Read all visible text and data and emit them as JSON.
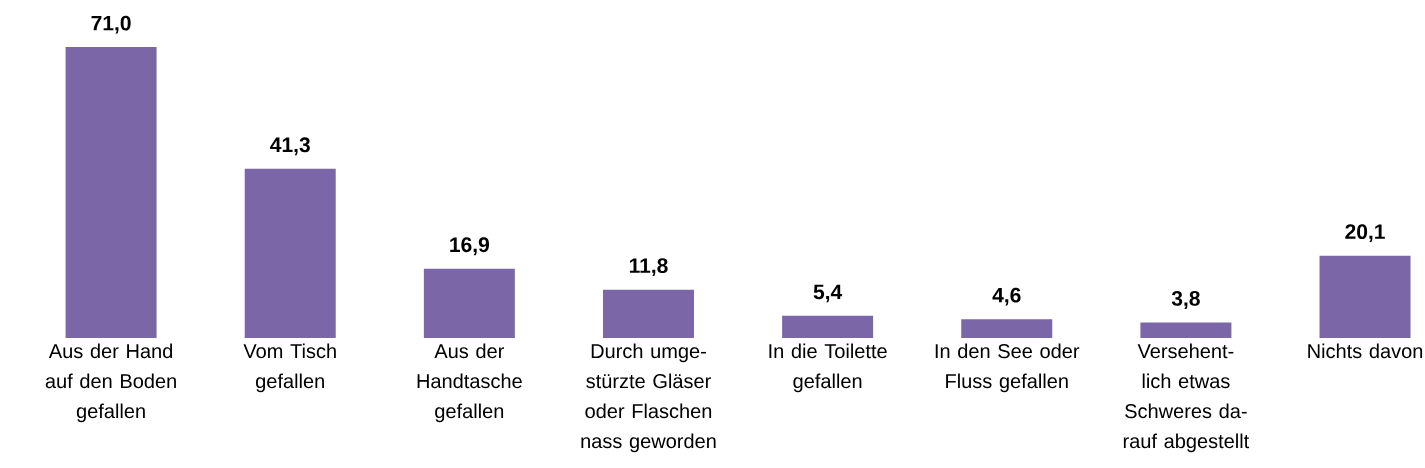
{
  "chart_data": {
    "type": "bar",
    "categories": [
      "Aus der Hand auf den Boden gefallen",
      "Vom Tisch gefallen",
      "Aus der Handtasche gefallen",
      "Durch umge-stürzte Gläser oder Flaschen nass geworden",
      "In die Toilette gefallen",
      "In den See oder Fluss gefallen",
      "Versehent-lich etwas Schweres da-rauf abgestellt",
      "Nichts davon"
    ],
    "values": [
      71.0,
      41.3,
      16.9,
      11.8,
      5.4,
      4.6,
      3.8,
      20.1
    ],
    "value_labels": [
      "71,0",
      "41,3",
      "16,9",
      "11,8",
      "5,4",
      "4,6",
      "3,8",
      "20,1"
    ],
    "color": "#7b66a8"
  }
}
